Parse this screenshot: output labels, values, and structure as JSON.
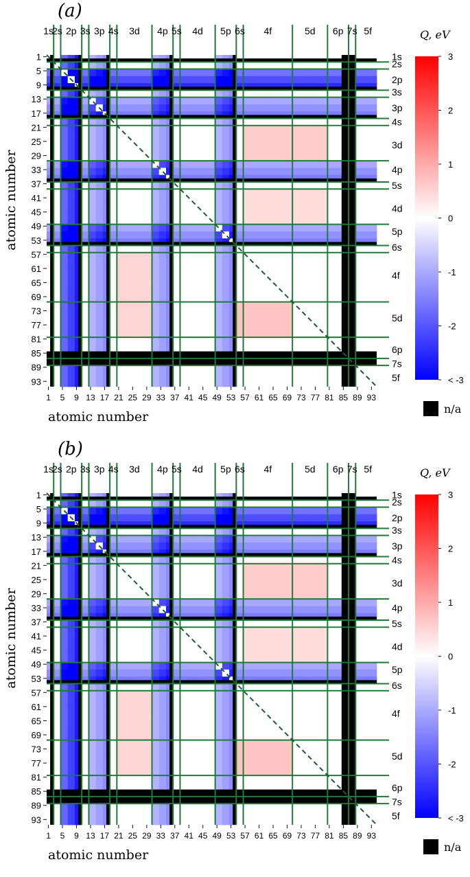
{
  "chart_data": [
    {
      "type": "heatmap",
      "panel_label": "(a)",
      "xlabel": "atomic number",
      "ylabel": "atomic number",
      "x_ticks": [
        "1",
        "5",
        "9",
        "13",
        "17",
        "21",
        "25",
        "29",
        "33",
        "37",
        "41",
        "45",
        "49",
        "53",
        "57",
        "61",
        "65",
        "69",
        "73",
        "77",
        "81",
        "85",
        "89",
        "93"
      ],
      "y_ticks": [
        "1",
        "5",
        "9",
        "13",
        "17",
        "21",
        "25",
        "29",
        "33",
        "37",
        "41",
        "45",
        "49",
        "53",
        "57",
        "61",
        "65",
        "69",
        "73",
        "77",
        "81",
        "85",
        "89",
        "93"
      ],
      "x_range": [
        1,
        95
      ],
      "y_range": [
        1,
        95
      ],
      "top_shell_labels": [
        "1s",
        "2s",
        "2p",
        "3s",
        "3p",
        "4s",
        "3d",
        "4p",
        "5s",
        "4d",
        "5p",
        "6s",
        "4f",
        "5d",
        "6p",
        "7s",
        "5f"
      ],
      "right_shell_labels": [
        "1s",
        "2s",
        "2p",
        "3s",
        "3p",
        "4s",
        "3d",
        "4p",
        "5s",
        "4d",
        "5p",
        "6s",
        "4f",
        "5d",
        "6p",
        "7s",
        "5f"
      ],
      "colorbar": {
        "title": "Q, eV",
        "min": -3,
        "max": 3,
        "ticks": [
          "3",
          "2",
          "1",
          "0",
          "-1",
          "-2",
          "< -3"
        ],
        "low_color": "#0000ff",
        "mid_color": "#ffffff",
        "high_color": "#ff0000"
      },
      "na_label": "n/a",
      "na_color": "#000000",
      "grid_color": "#1f7a3a",
      "diagonal": "dashed"
    },
    {
      "type": "heatmap",
      "panel_label": "(b)",
      "xlabel": "atomic number",
      "ylabel": "atomic number",
      "x_ticks": [
        "1",
        "5",
        "9",
        "13",
        "17",
        "21",
        "25",
        "29",
        "33",
        "37",
        "41",
        "45",
        "49",
        "53",
        "57",
        "61",
        "65",
        "69",
        "73",
        "77",
        "81",
        "85",
        "89",
        "93"
      ],
      "y_ticks": [
        "1",
        "5",
        "9",
        "13",
        "17",
        "21",
        "25",
        "29",
        "33",
        "37",
        "41",
        "45",
        "49",
        "53",
        "57",
        "61",
        "65",
        "69",
        "73",
        "77",
        "81",
        "85",
        "89",
        "93"
      ],
      "x_range": [
        1,
        95
      ],
      "y_range": [
        1,
        95
      ],
      "top_shell_labels": [
        "1s",
        "2s",
        "2p",
        "3s",
        "3p",
        "4s",
        "3d",
        "4p",
        "5s",
        "4d",
        "5p",
        "6s",
        "4f",
        "5d",
        "6p",
        "7s",
        "5f"
      ],
      "right_shell_labels": [
        "1s",
        "2s",
        "2p",
        "3s",
        "3p",
        "4s",
        "3d",
        "4p",
        "5s",
        "4d",
        "5p",
        "6s",
        "4f",
        "5d",
        "6p",
        "7s",
        "5f"
      ],
      "colorbar": {
        "title": "Q, eV",
        "min": -3,
        "max": 3,
        "ticks": [
          "3",
          "2",
          "1",
          "0",
          "-1",
          "-2",
          "< -3"
        ],
        "low_color": "#0000ff",
        "mid_color": "#ffffff",
        "high_color": "#ff0000"
      },
      "na_label": "n/a",
      "na_color": "#000000",
      "grid_color": "#1f7a3a",
      "diagonal": "dashed"
    }
  ]
}
